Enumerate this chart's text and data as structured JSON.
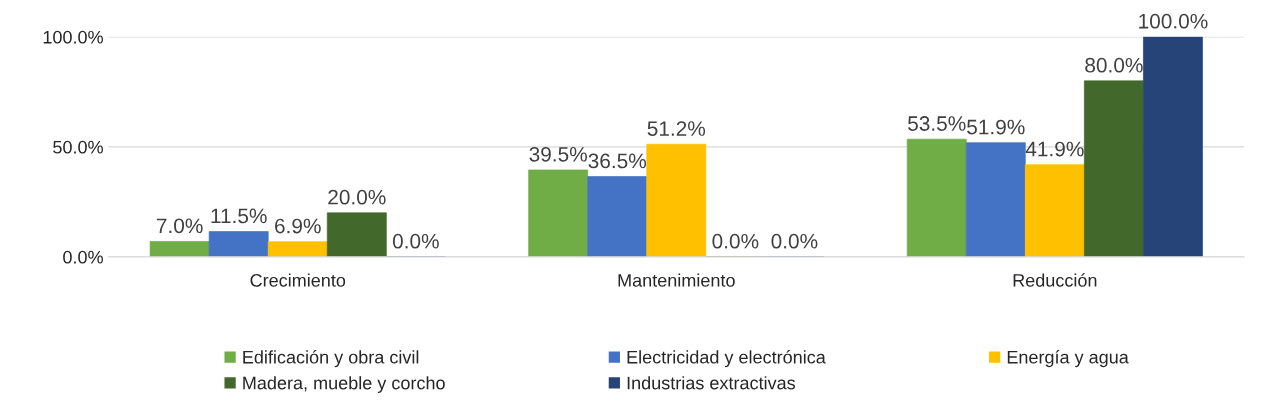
{
  "chart_data": {
    "type": "bar",
    "categories": [
      "Crecimiento",
      "Mantenimiento",
      "Reducción"
    ],
    "series": [
      {
        "name": "Edificación y obra civil",
        "color": "#70ad47",
        "values": [
          7.0,
          39.5,
          53.5
        ],
        "value_labels": [
          "7.0%",
          "39.5%",
          "53.5%"
        ]
      },
      {
        "name": "Electricidad y electrónica",
        "color": "#4472c4",
        "values": [
          11.5,
          36.5,
          51.9
        ],
        "value_labels": [
          "11.5%",
          "36.5%",
          "51.9%"
        ]
      },
      {
        "name": "Energía y agua",
        "color": "#ffc000",
        "values": [
          6.9,
          51.2,
          41.9
        ],
        "value_labels": [
          "6.9%",
          "51.2%",
          "41.9%"
        ]
      },
      {
        "name": "Madera, mueble y corcho",
        "color": "#43682b",
        "values": [
          20.0,
          0.0,
          80.0
        ],
        "value_labels": [
          "20.0%",
          "0.0%",
          "80.0%"
        ]
      },
      {
        "name": "Industrias extractivas",
        "color": "#264478",
        "values": [
          0.0,
          0.0,
          100.0
        ],
        "value_labels": [
          "0.0%",
          "0.0%",
          "100.0%"
        ]
      }
    ],
    "ylim": [
      0,
      100
    ],
    "yticks": [
      {
        "value": 0,
        "label": "0.0%"
      },
      {
        "value": 50,
        "label": "50.0%"
      },
      {
        "value": 100,
        "label": "100.0%"
      }
    ],
    "grid": "y",
    "legend": "bottom"
  }
}
